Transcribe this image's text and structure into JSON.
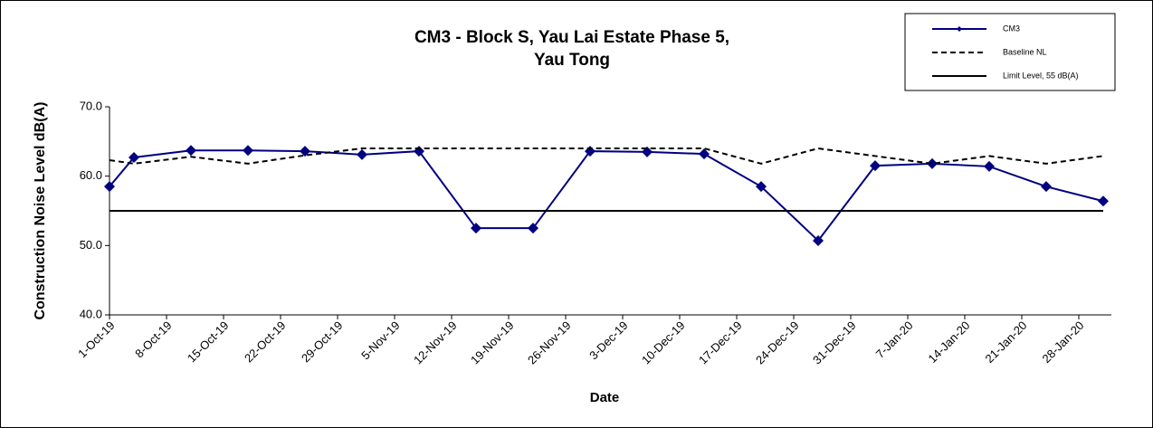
{
  "chart_data": {
    "type": "line",
    "title": "CM3 - Block S, Yau Lai Estate Phase 5,",
    "subtitle": "Yau Tong",
    "x_label": "Date",
    "y_label": "Construction Noise Level  dB(A)",
    "x": [
      "2019-10-01",
      "2019-10-04",
      "2019-10-11",
      "2019-10-18",
      "2019-10-25",
      "2019-11-01",
      "2019-11-08",
      "2019-11-15",
      "2019-11-22",
      "2019-11-29",
      "2019-12-06",
      "2019-12-13",
      "2019-12-20",
      "2019-12-27",
      "2020-01-03",
      "2020-01-10",
      "2020-01-17",
      "2020-01-24",
      "2020-01-31"
    ],
    "series": [
      {
        "name": "CM3",
        "color": "#000080",
        "style": "solid-marker",
        "values": [
          58.5,
          62.7,
          63.7,
          63.7,
          63.6,
          63.1,
          63.6,
          52.5,
          52.5,
          63.6,
          63.5,
          63.2,
          58.5,
          50.7,
          61.5,
          61.8,
          61.4,
          58.5,
          56.4
        ]
      },
      {
        "name": "Baseline NL",
        "color": "#000000",
        "style": "dashed",
        "values": [
          62.3,
          61.8,
          62.8,
          61.8,
          63.0,
          64.0,
          64.0,
          64.0,
          64.0,
          64.0,
          64.0,
          64.0,
          61.8,
          64.0,
          62.9,
          61.8,
          62.9,
          61.8,
          62.9
        ]
      },
      {
        "name": "Limit Level, 55 dB(A)",
        "color": "#000000",
        "style": "solid",
        "values": [
          55,
          55,
          55,
          55,
          55,
          55,
          55,
          55,
          55,
          55,
          55,
          55,
          55,
          55,
          55,
          55,
          55,
          55,
          55
        ]
      }
    ],
    "xlim": [
      "2019-10-01",
      "2020-02-01"
    ],
    "xticks": [
      {
        "value": "2019-10-01",
        "label": "1-Oct-19"
      },
      {
        "value": "2019-10-08",
        "label": "8-Oct-19"
      },
      {
        "value": "2019-10-15",
        "label": "15-Oct-19"
      },
      {
        "value": "2019-10-22",
        "label": "22-Oct-19"
      },
      {
        "value": "2019-10-29",
        "label": "29-Oct-19"
      },
      {
        "value": "2019-11-05",
        "label": "5-Nov-19"
      },
      {
        "value": "2019-11-12",
        "label": "12-Nov-19"
      },
      {
        "value": "2019-11-19",
        "label": "19-Nov-19"
      },
      {
        "value": "2019-11-26",
        "label": "26-Nov-19"
      },
      {
        "value": "2019-12-03",
        "label": "3-Dec-19"
      },
      {
        "value": "2019-12-10",
        "label": "10-Dec-19"
      },
      {
        "value": "2019-12-17",
        "label": "17-Dec-19"
      },
      {
        "value": "2019-12-24",
        "label": "24-Dec-19"
      },
      {
        "value": "2019-12-31",
        "label": "31-Dec-19"
      },
      {
        "value": "2020-01-07",
        "label": "7-Jan-20"
      },
      {
        "value": "2020-01-14",
        "label": "14-Jan-20"
      },
      {
        "value": "2020-01-21",
        "label": "21-Jan-20"
      },
      {
        "value": "2020-01-28",
        "label": "28-Jan-20"
      }
    ],
    "ylim": [
      40,
      70
    ],
    "yticks": [
      {
        "value": 40,
        "label": "40.0"
      },
      {
        "value": 50,
        "label": "50.0"
      },
      {
        "value": 60,
        "label": "60.0"
      },
      {
        "value": 70,
        "label": "70.0"
      }
    ],
    "legend": "top-right",
    "grid": false
  }
}
